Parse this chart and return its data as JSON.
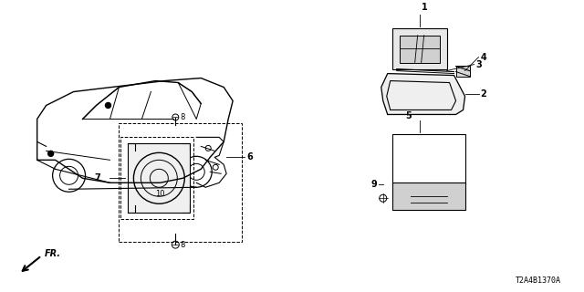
{
  "bg_color": "#ffffff",
  "line_color": "#000000",
  "diagram_code": "T2A4B1370A",
  "fr_label": "FR.",
  "part_numbers": [
    1,
    2,
    3,
    4,
    5,
    6,
    7,
    8,
    9,
    10
  ],
  "fig_width": 6.4,
  "fig_height": 3.2,
  "dpi": 100
}
